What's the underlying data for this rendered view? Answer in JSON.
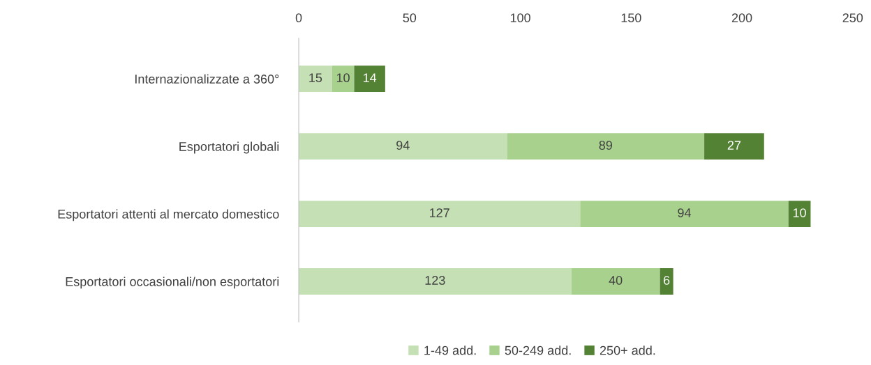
{
  "chart_data": {
    "type": "bar",
    "orientation": "horizontal",
    "stacked": true,
    "categories": [
      "Internazionalizzate a 360°",
      "Esportatori globali",
      "Esportatori attenti al mercato domestico",
      "Esportatori occasionali/non esportatori"
    ],
    "series": [
      {
        "name": "1-49 add.",
        "color": "#c5e0b4",
        "values": [
          15,
          94,
          127,
          123
        ]
      },
      {
        "name": "50-249 add.",
        "color": "#a9d18e",
        "values": [
          10,
          89,
          94,
          40
        ]
      },
      {
        "name": "250+ add.",
        "color": "#548235",
        "values": [
          14,
          27,
          10,
          6
        ]
      }
    ],
    "xlim": [
      0,
      250
    ],
    "xticks": [
      0,
      50,
      100,
      150,
      200,
      250
    ],
    "data_labels": true,
    "grid": false,
    "legend": "bottom"
  }
}
